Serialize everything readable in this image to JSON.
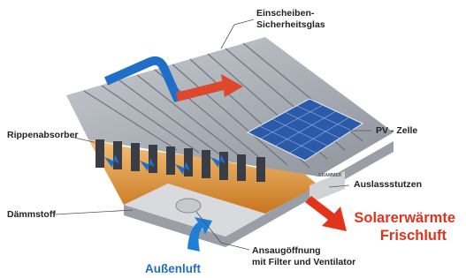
{
  "labels": [
    {
      "lines": [
        "Einscheiben-",
        "Sicherheitsglas"
      ]
    },
    {
      "lines": [
        "PV - Zelle"
      ]
    },
    {
      "lines": [
        "Rippenabsorber"
      ]
    },
    {
      "lines": [
        "Auslassstutzen"
      ]
    },
    {
      "lines": [
        "Dämmstoff"
      ]
    },
    {
      "lines": [
        "Solarerwärmte",
        "Frischluft"
      ]
    },
    {
      "lines": [
        "Ansaugöffnung",
        "mit Filter und Ventilator"
      ]
    },
    {
      "lines": [
        "Außenluft"
      ]
    }
  ],
  "logo": "GRAMMER"
}
